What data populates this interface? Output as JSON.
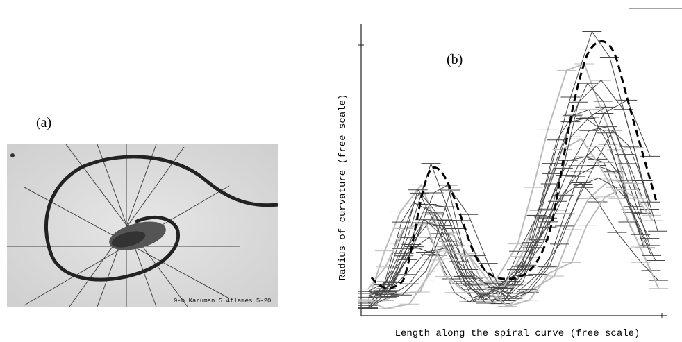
{
  "panel_a": {
    "label": "(a)",
    "caption": "9-b Karuman 5  4flames 5-20"
  },
  "panel_b": {
    "label": "(b)",
    "y_axis_label": "Radius of curvature (free scale)",
    "x_axis_label": "Length along the spiral curve (free scale)"
  }
}
